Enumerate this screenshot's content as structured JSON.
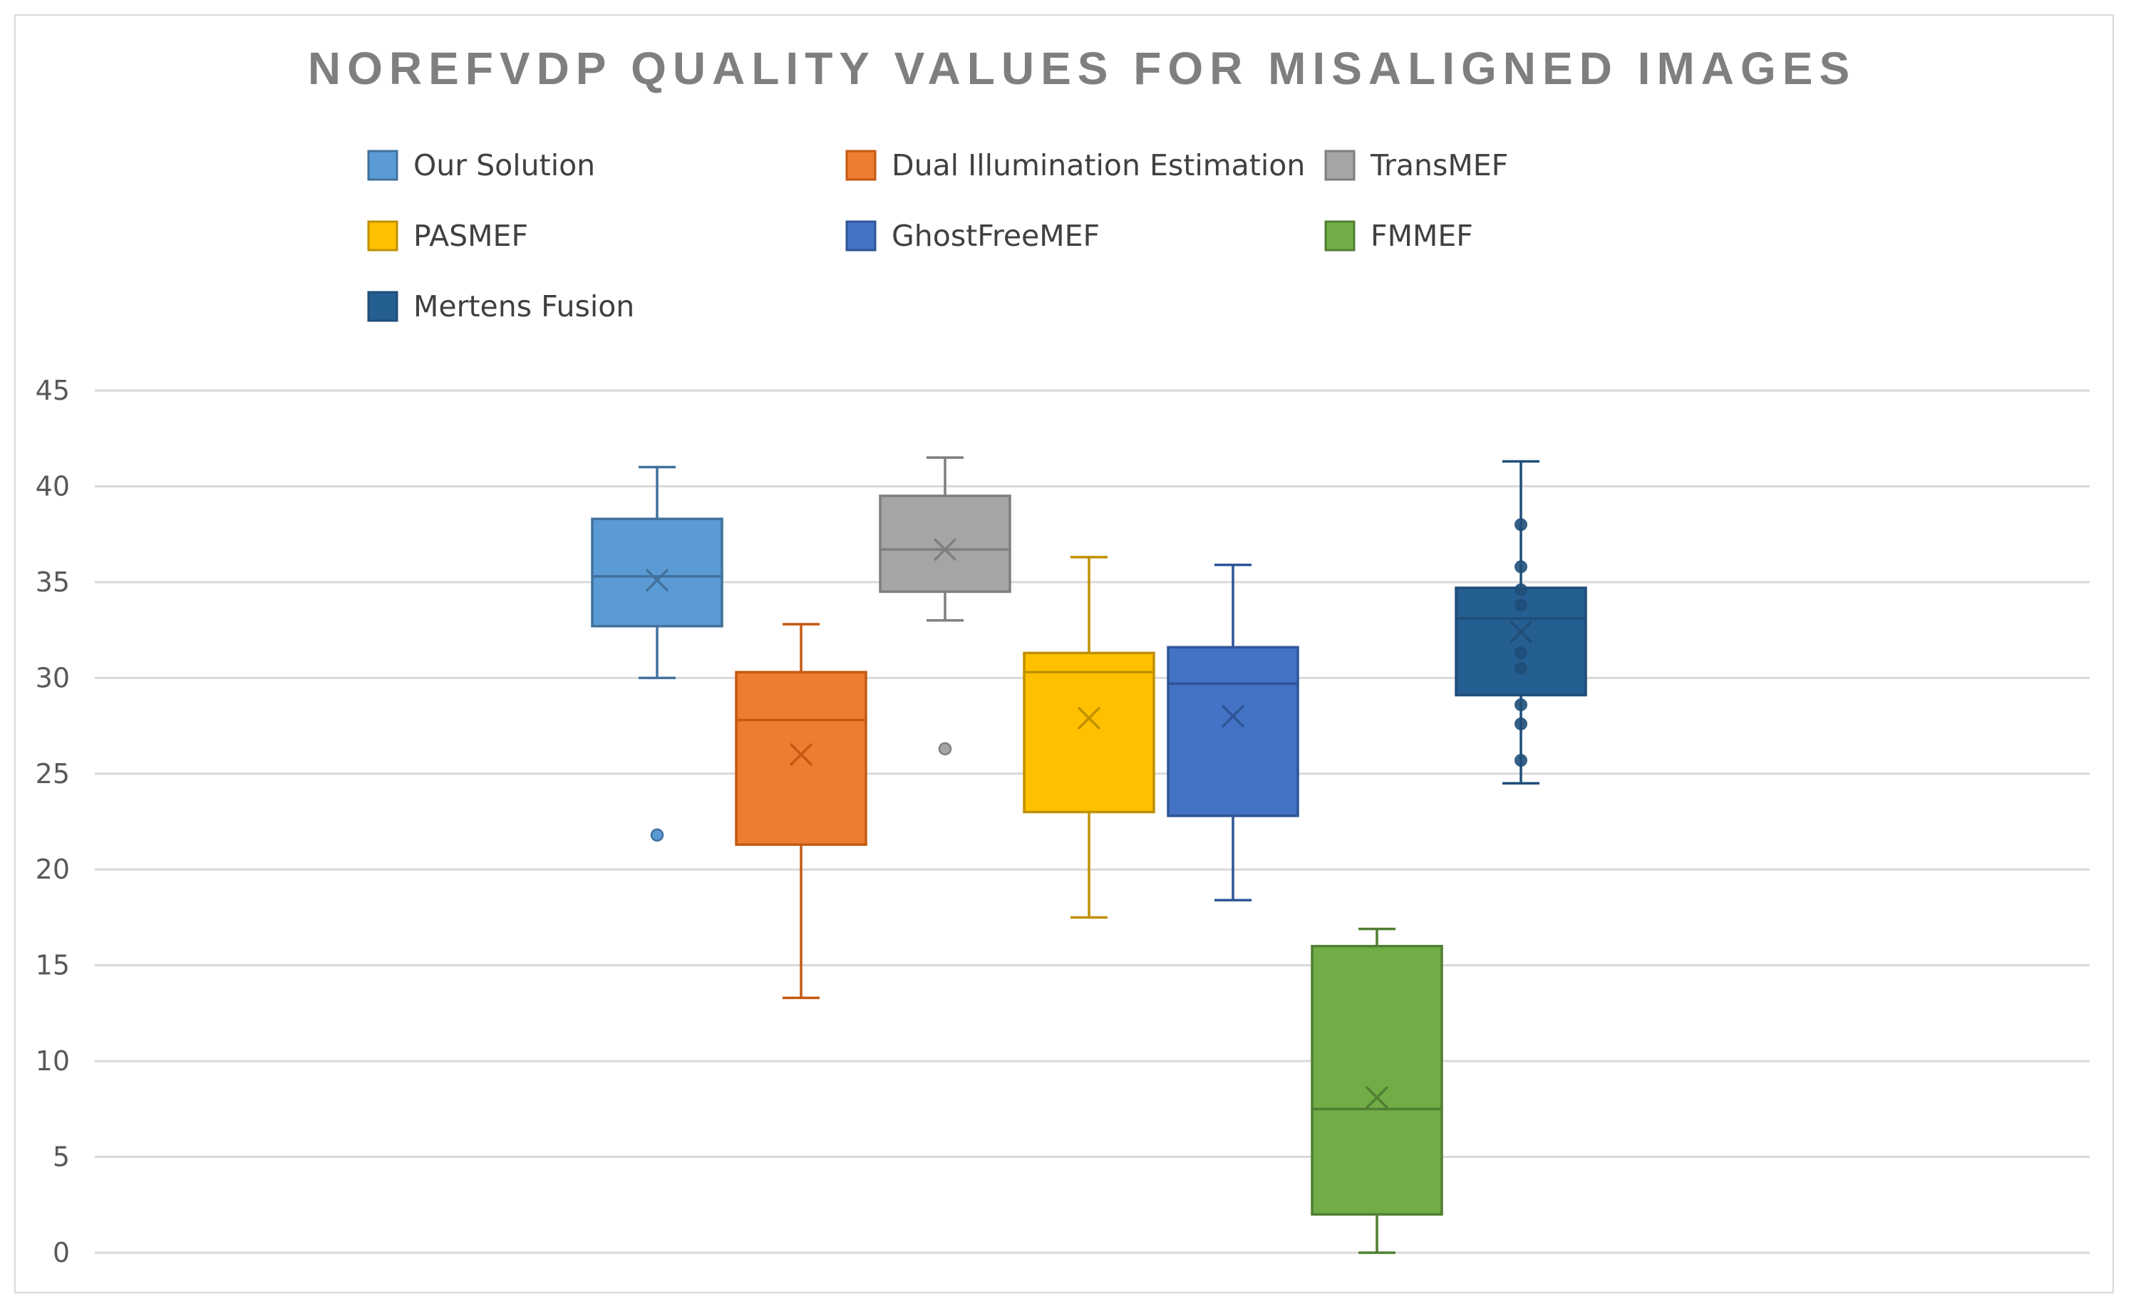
{
  "chart_data": {
    "type": "box",
    "title": "NOREFVDP QUALITY VALUES FOR MISALIGNED IMAGES",
    "xlabel": "",
    "ylabel": "",
    "ylim": [
      0,
      45
    ],
    "yticks": [
      0,
      5,
      10,
      15,
      20,
      25,
      30,
      35,
      40,
      45
    ],
    "grid": true,
    "legend_position": "top",
    "series": [
      {
        "name": "Our Solution",
        "color": "#5b9bd5",
        "line": "#41719c",
        "min": 30.0,
        "q1": 32.7,
        "median": 35.3,
        "q3": 38.3,
        "max": 41.0,
        "mean": 35.1,
        "outliers": [
          21.8
        ],
        "inner_points": []
      },
      {
        "name": "Dual Illumination Estimation",
        "color": "#ed7d31",
        "line": "#c55a11",
        "min": 13.3,
        "q1": 21.3,
        "median": 27.8,
        "q3": 30.3,
        "max": 32.8,
        "mean": 26.0,
        "outliers": [],
        "inner_points": []
      },
      {
        "name": "TransMEF",
        "color": "#a5a5a5",
        "line": "#7f7f7f",
        "min": 33.0,
        "q1": 34.5,
        "median": 36.7,
        "q3": 39.5,
        "max": 41.5,
        "mean": 36.7,
        "outliers": [
          26.3
        ],
        "inner_points": []
      },
      {
        "name": "PASMEF",
        "color": "#ffc000",
        "line": "#bf9000",
        "min": 17.5,
        "q1": 23.0,
        "median": 30.3,
        "q3": 31.3,
        "max": 36.3,
        "mean": 27.9,
        "outliers": [],
        "inner_points": []
      },
      {
        "name": "GhostFreeMEF",
        "color": "#4472c4",
        "line": "#2f5597",
        "min": 18.4,
        "q1": 22.8,
        "median": 29.7,
        "q3": 31.6,
        "max": 35.9,
        "mean": 28.0,
        "outliers": [],
        "inner_points": []
      },
      {
        "name": "FMMEF",
        "color": "#70ad47",
        "line": "#507e32",
        "min": 0.0,
        "q1": 2.0,
        "median": 7.5,
        "q3": 16.0,
        "max": 16.9,
        "mean": 8.1,
        "outliers": [],
        "inner_points": []
      },
      {
        "name": "Mertens Fusion",
        "color": "#255e91",
        "line": "#1f4e79",
        "min": 24.5,
        "q1": 29.1,
        "median": 33.1,
        "q3": 34.7,
        "max": 41.3,
        "mean": 32.4,
        "outliers": [],
        "inner_points": [
          38.0,
          35.8,
          34.6,
          33.8,
          31.3,
          30.5,
          28.6,
          27.6,
          25.7
        ]
      }
    ]
  }
}
